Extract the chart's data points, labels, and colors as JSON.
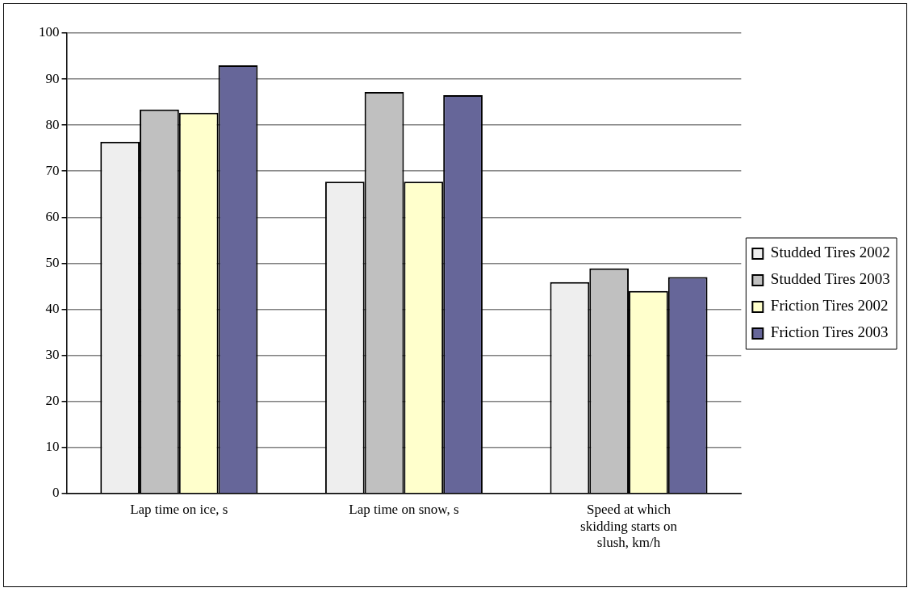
{
  "chart_data": {
    "type": "bar",
    "categories": [
      "Lap time on ice, s",
      "Lap time on snow, s",
      "Speed at which skidding starts on slush, km/h"
    ],
    "series": [
      {
        "name": "Studded Tires 2002",
        "color": "#eeeeee",
        "values": [
          76.4,
          67.7,
          45.9
        ]
      },
      {
        "name": "Studded Tires 2003",
        "color": "#c0c0c0",
        "values": [
          83.4,
          87.2,
          48.9
        ]
      },
      {
        "name": "Friction Tires 2002",
        "color": "#ffffcc",
        "values": [
          82.7,
          67.7,
          44.0
        ]
      },
      {
        "name": "Friction Tires 2003",
        "color": "#666699",
        "values": [
          93.0,
          86.5,
          47.0
        ]
      }
    ],
    "ylim": [
      0,
      100
    ],
    "yticks": [
      0,
      10,
      20,
      30,
      40,
      50,
      60,
      70,
      80,
      90,
      100
    ],
    "grid": "y",
    "legend": "right"
  }
}
